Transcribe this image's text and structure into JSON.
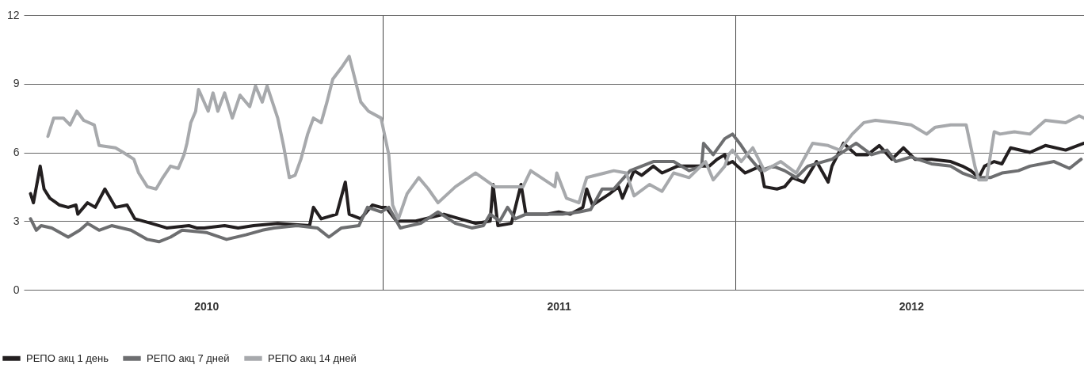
{
  "chart_data": {
    "type": "line",
    "xlim": [
      "2009-12-25",
      "2012-12-27"
    ],
    "xticks": [
      {
        "value": "2010-07-02",
        "label": "2010"
      },
      {
        "value": "2011-01-01",
        "label": null
      },
      {
        "value": "2011-07-02",
        "label": "2011"
      },
      {
        "value": "2012-01-01",
        "label": null
      },
      {
        "value": "2012-07-01",
        "label": "2012"
      }
    ],
    "ylim": [
      0,
      12
    ],
    "yticks": [
      0,
      3,
      6,
      9,
      12
    ],
    "grid": true,
    "legend": "bottom",
    "series": [
      {
        "name": "РЕПО акц 1 день",
        "color": "#231f20",
        "x": [
          "2010-01-01",
          "2010-01-04",
          "2010-01-11",
          "2010-01-15",
          "2010-01-21",
          "2010-01-31",
          "2010-02-09",
          "2010-02-17",
          "2010-02-19",
          "2010-03-01",
          "2010-03-09",
          "2010-03-19",
          "2010-03-30",
          "2010-04-11",
          "2010-04-19",
          "2010-05-06",
          "2010-05-22",
          "2010-06-14",
          "2010-06-22",
          "2010-06-30",
          "2010-07-21",
          "2010-08-04",
          "2010-08-20",
          "2010-09-14",
          "2010-10-17",
          "2010-10-21",
          "2010-10-29",
          "2010-11-14",
          "2010-11-23",
          "2010-11-27",
          "2010-12-09",
          "2010-12-21",
          "2010-12-30",
          "2011-01-04",
          "2011-01-15",
          "2011-02-04",
          "2011-03-05",
          "2011-04-07",
          "2011-04-22",
          "2011-04-25",
          "2011-04-30",
          "2011-05-14",
          "2011-05-24",
          "2011-05-29",
          "2011-06-20",
          "2011-07-02",
          "2011-07-14",
          "2011-07-27",
          "2011-07-31",
          "2011-08-06",
          "2011-08-24",
          "2011-09-02",
          "2011-09-06",
          "2011-09-18",
          "2011-09-26",
          "2011-10-08",
          "2011-10-17",
          "2011-11-02",
          "2011-11-23",
          "2011-12-05",
          "2011-12-13",
          "2011-12-21",
          "2011-12-24",
          "2011-12-29",
          "2012-01-03",
          "2012-01-11",
          "2012-01-27",
          "2012-01-31",
          "2012-02-13",
          "2012-02-21",
          "2012-02-29",
          "2012-03-12",
          "2012-03-25",
          "2012-04-06",
          "2012-04-10",
          "2012-04-22",
          "2012-05-05",
          "2012-05-17",
          "2012-05-29",
          "2012-06-11",
          "2012-06-23",
          "2012-07-05",
          "2012-07-22",
          "2012-08-11",
          "2012-08-23",
          "2012-09-01",
          "2012-09-09",
          "2012-09-15",
          "2012-09-25",
          "2012-10-03",
          "2012-10-12",
          "2012-11-01",
          "2012-11-17",
          "2012-12-08",
          "2012-12-27"
        ],
        "values": [
          4.2,
          3.8,
          5.4,
          4.4,
          4.0,
          3.7,
          3.6,
          3.7,
          3.3,
          3.8,
          3.6,
          4.4,
          3.6,
          3.7,
          3.1,
          2.9,
          2.7,
          2.8,
          2.7,
          2.7,
          2.8,
          2.7,
          2.8,
          2.9,
          2.8,
          3.6,
          3.1,
          3.3,
          4.7,
          3.3,
          3.1,
          3.7,
          3.6,
          3.6,
          3.0,
          3.0,
          3.3,
          2.9,
          3.0,
          4.6,
          2.8,
          2.9,
          4.6,
          3.3,
          3.3,
          3.4,
          3.3,
          3.6,
          4.4,
          3.7,
          4.2,
          4.5,
          4.0,
          5.2,
          5.0,
          5.4,
          5.1,
          5.4,
          5.4,
          5.4,
          5.7,
          5.9,
          5.5,
          5.6,
          5.4,
          5.1,
          5.4,
          4.5,
          4.4,
          4.5,
          4.9,
          4.7,
          5.6,
          4.7,
          5.4,
          6.4,
          5.9,
          5.9,
          6.3,
          5.7,
          6.2,
          5.7,
          5.7,
          5.6,
          5.4,
          5.2,
          4.9,
          5.4,
          5.6,
          5.5,
          6.2,
          6.0,
          6.3,
          6.1,
          6.4
        ]
      },
      {
        "name": "РЕПО акц 7 дней",
        "color": "#6d6e70",
        "x": [
          "2010-01-01",
          "2010-01-07",
          "2010-01-12",
          "2010-01-23",
          "2010-02-09",
          "2010-02-21",
          "2010-03-01",
          "2010-03-13",
          "2010-03-26",
          "2010-04-15",
          "2010-05-02",
          "2010-05-14",
          "2010-05-26",
          "2010-06-07",
          "2010-07-02",
          "2010-07-23",
          "2010-08-12",
          "2010-08-29",
          "2010-09-10",
          "2010-10-04",
          "2010-10-25",
          "2010-11-06",
          "2010-11-19",
          "2010-12-07",
          "2010-12-16",
          "2010-12-30",
          "2011-01-07",
          "2011-01-15",
          "2011-01-19",
          "2011-02-09",
          "2011-02-27",
          "2011-03-17",
          "2011-04-03",
          "2011-04-15",
          "2011-04-22",
          "2011-05-02",
          "2011-05-10",
          "2011-05-18",
          "2011-05-29",
          "2011-06-20",
          "2011-07-06",
          "2011-07-23",
          "2011-08-04",
          "2011-08-16",
          "2011-08-28",
          "2011-09-14",
          "2011-10-08",
          "2011-10-29",
          "2011-11-14",
          "2011-11-27",
          "2011-11-29",
          "2011-12-09",
          "2011-12-21",
          "2011-12-25",
          "2011-12-29",
          "2012-01-07",
          "2012-01-15",
          "2012-01-27",
          "2012-02-09",
          "2012-02-21",
          "2012-03-04",
          "2012-03-16",
          "2012-04-10",
          "2012-05-05",
          "2012-05-21",
          "2012-06-06",
          "2012-06-15",
          "2012-07-01",
          "2012-07-22",
          "2012-08-11",
          "2012-08-23",
          "2012-09-05",
          "2012-09-21",
          "2012-10-03",
          "2012-10-20",
          "2012-11-01",
          "2012-11-26",
          "2012-12-12",
          "2012-12-24"
        ],
        "values": [
          3.1,
          2.6,
          2.8,
          2.7,
          2.3,
          2.6,
          2.9,
          2.6,
          2.8,
          2.6,
          2.2,
          2.1,
          2.3,
          2.6,
          2.5,
          2.2,
          2.4,
          2.6,
          2.7,
          2.8,
          2.7,
          2.3,
          2.7,
          2.8,
          3.6,
          3.4,
          3.6,
          3.0,
          2.7,
          2.9,
          3.4,
          2.9,
          2.7,
          2.8,
          3.3,
          3.0,
          3.6,
          3.1,
          3.3,
          3.3,
          3.3,
          3.4,
          3.5,
          4.4,
          4.4,
          5.2,
          5.6,
          5.6,
          5.2,
          5.4,
          6.4,
          5.9,
          6.6,
          6.7,
          6.8,
          6.3,
          5.8,
          5.2,
          5.4,
          5.2,
          4.9,
          5.4,
          5.7,
          6.4,
          5.9,
          6.1,
          5.6,
          5.8,
          5.5,
          5.4,
          5.1,
          4.9,
          4.9,
          5.1,
          5.2,
          5.4,
          5.6,
          5.3,
          5.7
        ]
      },
      {
        "name": "РЕПО акц 14 дней",
        "color": "#a7a9ac",
        "x": [
          "2010-01-19",
          "2010-01-25",
          "2010-02-04",
          "2010-02-11",
          "2010-02-18",
          "2010-02-25",
          "2010-03-08",
          "2010-03-13",
          "2010-03-30",
          "2010-04-07",
          "2010-04-18",
          "2010-04-23",
          "2010-05-02",
          "2010-05-11",
          "2010-05-18",
          "2010-05-26",
          "2010-06-03",
          "2010-06-09",
          "2010-06-12",
          "2010-06-16",
          "2010-06-21",
          "2010-06-24",
          "2010-07-04",
          "2010-07-09",
          "2010-07-14",
          "2010-07-21",
          "2010-07-29",
          "2010-08-06",
          "2010-08-16",
          "2010-08-22",
          "2010-08-29",
          "2010-09-03",
          "2010-09-14",
          "2010-09-20",
          "2010-09-26",
          "2010-10-02",
          "2010-10-08",
          "2010-10-15",
          "2010-10-21",
          "2010-10-29",
          "2010-11-04",
          "2010-11-10",
          "2010-11-19",
          "2010-11-27",
          "2010-12-09",
          "2010-12-17",
          "2010-12-30",
          "2011-01-07",
          "2011-01-11",
          "2011-01-17",
          "2011-01-26",
          "2011-02-07",
          "2011-02-17",
          "2011-02-27",
          "2011-03-17",
          "2011-04-07",
          "2011-04-27",
          "2011-05-26",
          "2011-06-03",
          "2011-06-28",
          "2011-06-30",
          "2011-07-10",
          "2011-07-23",
          "2011-07-31",
          "2011-08-28",
          "2011-09-10",
          "2011-09-18",
          "2011-10-04",
          "2011-10-17",
          "2011-10-29",
          "2011-11-14",
          "2011-12-01",
          "2011-12-09",
          "2011-12-21",
          "2011-12-25",
          "2011-12-29",
          "2012-01-07",
          "2012-01-19",
          "2012-01-31",
          "2012-02-17",
          "2012-03-04",
          "2012-03-21",
          "2012-04-06",
          "2012-04-18",
          "2012-05-01",
          "2012-05-13",
          "2012-05-25",
          "2012-06-15",
          "2012-07-01",
          "2012-07-17",
          "2012-07-26",
          "2012-08-11",
          "2012-08-27",
          "2012-09-05",
          "2012-09-09",
          "2012-09-17",
          "2012-09-25",
          "2012-10-01",
          "2012-10-16",
          "2012-11-01",
          "2012-11-17",
          "2012-12-08",
          "2012-12-22",
          "2012-12-27"
        ],
        "values": [
          6.7,
          7.5,
          7.5,
          7.2,
          7.8,
          7.4,
          7.2,
          6.3,
          6.2,
          6.0,
          5.7,
          5.1,
          4.5,
          4.4,
          4.9,
          5.4,
          5.3,
          5.9,
          6.4,
          7.3,
          7.8,
          8.75,
          7.8,
          8.6,
          7.8,
          8.6,
          7.5,
          8.5,
          8.0,
          8.9,
          8.2,
          8.9,
          7.5,
          6.3,
          4.9,
          5.0,
          5.7,
          6.8,
          7.5,
          7.3,
          8.2,
          9.2,
          9.7,
          10.2,
          8.2,
          7.8,
          7.5,
          5.9,
          3.7,
          3.1,
          4.2,
          4.9,
          4.4,
          3.8,
          4.5,
          5.1,
          4.5,
          4.5,
          5.2,
          4.5,
          5.1,
          4.0,
          3.8,
          4.9,
          5.2,
          5.1,
          4.1,
          4.6,
          4.3,
          5.1,
          4.9,
          5.6,
          4.8,
          5.4,
          5.9,
          6.1,
          5.6,
          6.2,
          5.2,
          5.6,
          5.1,
          6.4,
          6.3,
          6.1,
          6.8,
          7.3,
          7.4,
          7.3,
          7.2,
          6.8,
          7.1,
          7.2,
          7.2,
          5.4,
          4.8,
          4.8,
          6.9,
          6.8,
          6.9,
          6.8,
          7.4,
          7.3,
          7.6,
          7.5
        ]
      }
    ]
  }
}
